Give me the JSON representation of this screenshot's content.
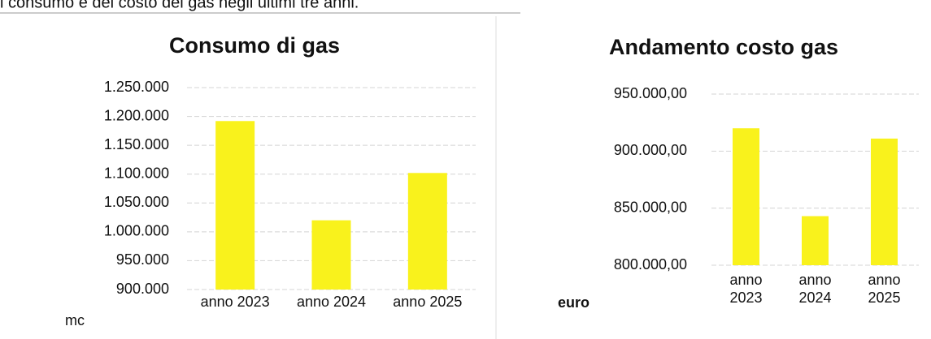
{
  "caption": "i consumo e del costo del gas negli ultimi tre anni.",
  "chart_data": [
    {
      "type": "bar",
      "title": "Consumo di gas",
      "ylabel": "mc",
      "categories": [
        "anno 2023",
        "anno 2024",
        "anno 2025"
      ],
      "values": [
        1192000,
        1020000,
        1102000
      ],
      "color": "#f9f21c",
      "ylim": [
        900000,
        1250000
      ],
      "yticks": [
        {
          "value": 900000,
          "label": "900.000"
        },
        {
          "value": 950000,
          "label": "950.000"
        },
        {
          "value": 1000000,
          "label": "1.000.000"
        },
        {
          "value": 1050000,
          "label": "1.050.000"
        },
        {
          "value": 1100000,
          "label": "1.100.000"
        },
        {
          "value": 1150000,
          "label": "1.150.000"
        },
        {
          "value": 1200000,
          "label": "1.200.000"
        },
        {
          "value": 1250000,
          "label": "1.250.000"
        }
      ],
      "grid": true
    },
    {
      "type": "bar",
      "title": "Andamento costo gas",
      "ylabel": "euro",
      "categories": [
        "anno 2023",
        "anno 2024",
        "anno 2025"
      ],
      "values": [
        920000,
        843000,
        911000
      ],
      "color": "#f9f21c",
      "ylim": [
        800000,
        950000
      ],
      "yticks": [
        {
          "value": 800000,
          "label": "800.000,00"
        },
        {
          "value": 850000,
          "label": "850.000,00"
        },
        {
          "value": 900000,
          "label": "900.000,00"
        },
        {
          "value": 950000,
          "label": "950.000,00"
        }
      ],
      "grid": true
    }
  ]
}
